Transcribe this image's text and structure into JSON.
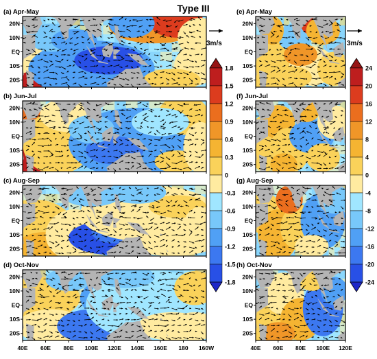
{
  "figure": {
    "title": "Type III",
    "vector_label": "3m/s"
  },
  "panels_left": [
    {
      "label": "(a) Apr-May"
    },
    {
      "label": "(b) Jun-Jul"
    },
    {
      "label": "(c) Aug-Sep"
    },
    {
      "label": "(d) Oct-Nov"
    }
  ],
  "panels_right": [
    {
      "label": "(e) Apr-May"
    },
    {
      "label": "(f) Jun-Jul"
    },
    {
      "label": "(g) Aug-Sep"
    },
    {
      "label": "(h) Oct-Nov"
    }
  ],
  "lat_ticks": [
    "20N",
    "10N",
    "EQ",
    "10S",
    "20S"
  ],
  "lon_ticks_left": [
    "40E",
    "60E",
    "80E",
    "100E",
    "120E",
    "140E",
    "160E",
    "180",
    "160W"
  ],
  "lon_ticks_right": [
    "40E",
    "60E",
    "80E",
    "100E",
    "120E"
  ],
  "colorbar_left": {
    "labels": [
      "1.8",
      "1.5",
      "1.2",
      "0.9",
      "0.6",
      "0.3",
      "0",
      "-0.3",
      "-0.6",
      "-0.9",
      "-1.2",
      "-1.5",
      "-1.8"
    ]
  },
  "colorbar_right": {
    "labels": [
      "24",
      "20",
      "16",
      "12",
      "8",
      "4",
      "0",
      "-4",
      "-8",
      "-12",
      "-16",
      "-20",
      "-24"
    ]
  },
  "colors": {
    "land": "#b4b4b4",
    "scale": [
      "#1e28c8",
      "#2850e6",
      "#3c78f0",
      "#50a0f5",
      "#78c8fa",
      "#a0e6ff",
      "#ffeba0",
      "#fad25a",
      "#f5b432",
      "#f09628",
      "#eb6e1e",
      "#dc3c1e",
      "#be1e1e",
      "#961414"
    ]
  }
}
